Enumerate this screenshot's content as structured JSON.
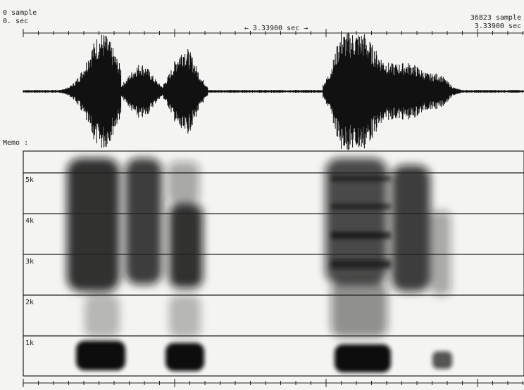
{
  "header": {
    "start_sample": "0 sample",
    "start_time": "0. sec",
    "duration": "←   3.33900 sec   →",
    "end_sample": "36823 sample",
    "end_time": "3.33900 sec"
  },
  "memo_label": "Memo :",
  "frequency_labels": [
    "5k",
    "4k",
    "3k",
    "2k",
    "1k"
  ]
}
